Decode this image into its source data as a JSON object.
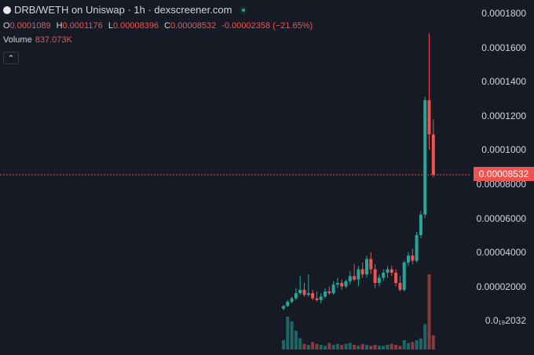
{
  "header": {
    "title": "DRB/WETH on Uniswap · 1h · dexscreener.com",
    "logo_icon": "drb-token-icon",
    "live_icon": "live-indicator-icon"
  },
  "ohlc": {
    "o_label": "O",
    "o_value": "0.0001089",
    "h_label": "H",
    "h_value": "0.0001176",
    "l_label": "L",
    "l_value": "0.00008396",
    "c_label": "C",
    "c_value": "0.00008532",
    "change": "-0.00002358 (−21.65%)"
  },
  "volume": {
    "label": "Volume",
    "value": "837.073K"
  },
  "collapse_icon": "chevron-up-icon",
  "y_axis": {
    "ticks": [
      "0.0001800",
      "0.0001600",
      "0.0001400",
      "0.0001200",
      "0.0001000",
      "0.00008000",
      "0.00006000",
      "0.00004000",
      "0.00002000",
      "0.0₁₉2032"
    ],
    "current_price": "0.00008532"
  },
  "colors": {
    "up": "#26a69a",
    "down": "#ef5350",
    "background": "#161a25",
    "grid": "#1f2330"
  },
  "chart_data": {
    "type": "candlestick",
    "title": "DRB/WETH on Uniswap · 1h · dexscreener.com",
    "y_unit": "price",
    "ylim": [
      0,
      0.00019
    ],
    "ohlc_series": [
      [
        7e-06,
        9e-06,
        6e-06,
        8.5e-06
      ],
      [
        8.5e-06,
        1.2e-05,
        8e-06,
        1.1e-05
      ],
      [
        1.1e-05,
        1.4e-05,
        1e-05,
        1.3e-05
      ],
      [
        1.3e-05,
        1.9e-05,
        1.2e-05,
        1.6e-05
      ],
      [
        1.6e-05,
        2.6e-05,
        1.5e-05,
        1.8e-05
      ],
      [
        1.8e-05,
        2.2e-05,
        1.4e-05,
        1.5e-05
      ],
      [
        1.5e-05,
        2.7e-05,
        1.4e-05,
        1.6e-05
      ],
      [
        1.6e-05,
        1.8e-05,
        1.2e-05,
        1.3e-05
      ],
      [
        1.3e-05,
        1.7e-05,
        1.1e-05,
        1.2e-05
      ],
      [
        1.2e-05,
        1.6e-05,
        1e-05,
        1.4e-05
      ],
      [
        1.4e-05,
        1.9e-05,
        1.3e-05,
        1.7e-05
      ],
      [
        1.7e-05,
        2e-05,
        1.5e-05,
        1.6e-05
      ],
      [
        1.6e-05,
        2.3e-05,
        1.5e-05,
        2.1e-05
      ],
      [
        2.1e-05,
        2.5e-05,
        1.9e-05,
        2.2e-05
      ],
      [
        2.2e-05,
        2.4e-05,
        1.8e-05,
        2e-05
      ],
      [
        2e-05,
        2.4e-05,
        1.9e-05,
        2.3e-05
      ],
      [
        2.3e-05,
        2.9e-05,
        2.1e-05,
        2.6e-05
      ],
      [
        2.6e-05,
        3.3e-05,
        2.3e-05,
        2.4e-05
      ],
      [
        2.4e-05,
        3.2e-05,
        2e-05,
        3e-05
      ],
      [
        3e-05,
        3.4e-05,
        2.5e-05,
        2.7e-05
      ],
      [
        2.7e-05,
        3.8e-05,
        2.5e-05,
        3.6e-05
      ],
      [
        3.6e-05,
        4e-05,
        2.7e-05,
        3e-05
      ],
      [
        3e-05,
        3.3e-05,
        1.9e-05,
        2.2e-05
      ],
      [
        2.2e-05,
        2.7e-05,
        2e-05,
        2.5e-05
      ],
      [
        2.5e-05,
        3e-05,
        2.3e-05,
        2.8e-05
      ],
      [
        2.8e-05,
        3.2e-05,
        2.5e-05,
        3e-05
      ],
      [
        3e-05,
        3.2e-05,
        2.6e-05,
        2.8e-05
      ],
      [
        2.8e-05,
        3e-05,
        2e-05,
        2.2e-05
      ],
      [
        2.2e-05,
        2.6e-05,
        1.7e-05,
        1.8e-05
      ],
      [
        1.8e-05,
        3.5e-05,
        1.7e-05,
        3.4e-05
      ],
      [
        3.4e-05,
        4e-05,
        3.2e-05,
        3.8e-05
      ],
      [
        3.8e-05,
        4.2e-05,
        3.3e-05,
        3.5e-05
      ],
      [
        3.5e-05,
        5.2e-05,
        3.4e-05,
        5e-05
      ],
      [
        5e-05,
        6.4e-05,
        4.8e-05,
        6.2e-05
      ],
      [
        6.2e-05,
        0.000131,
        6e-05,
        0.000129
      ],
      [
        0.000129,
        0.000168,
        0.0001,
        0.000109
      ],
      [
        0.0001089,
        0.0001176,
        8.396e-05,
        8.532e-05
      ]
    ],
    "volumes": [
      0.1,
      0.35,
      0.3,
      0.2,
      0.12,
      0.06,
      0.05,
      0.08,
      0.06,
      0.05,
      0.04,
      0.07,
      0.05,
      0.06,
      0.05,
      0.06,
      0.07,
      0.05,
      0.04,
      0.06,
      0.05,
      0.04,
      0.05,
      0.04,
      0.04,
      0.05,
      0.06,
      0.05,
      0.04,
      0.1,
      0.07,
      0.08,
      0.1,
      0.12,
      0.27,
      0.8,
      0.15
    ]
  }
}
